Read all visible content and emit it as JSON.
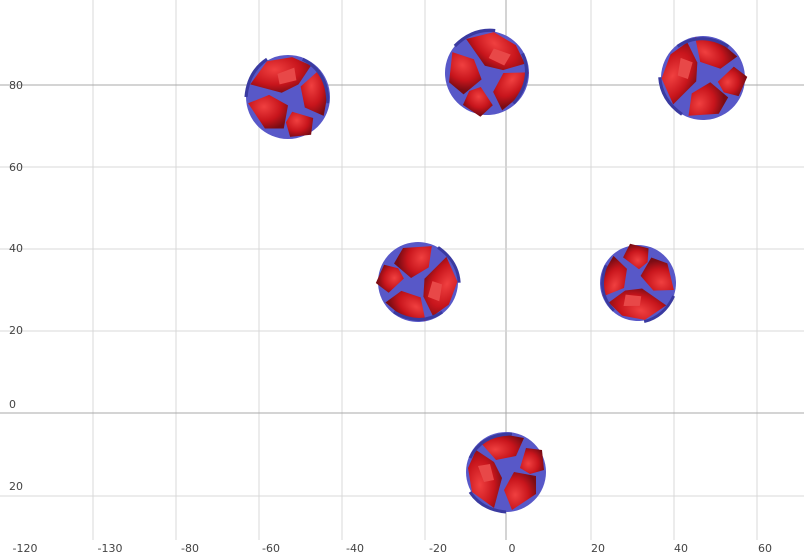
{
  "axes": {
    "x_labels": [
      "-120",
      "-130",
      "-80",
      "-60",
      "-40",
      "-20",
      "0",
      "20",
      "40",
      "60"
    ],
    "y_labels": [
      "80",
      "60",
      "40",
      "20",
      "0",
      "20"
    ]
  }
}
